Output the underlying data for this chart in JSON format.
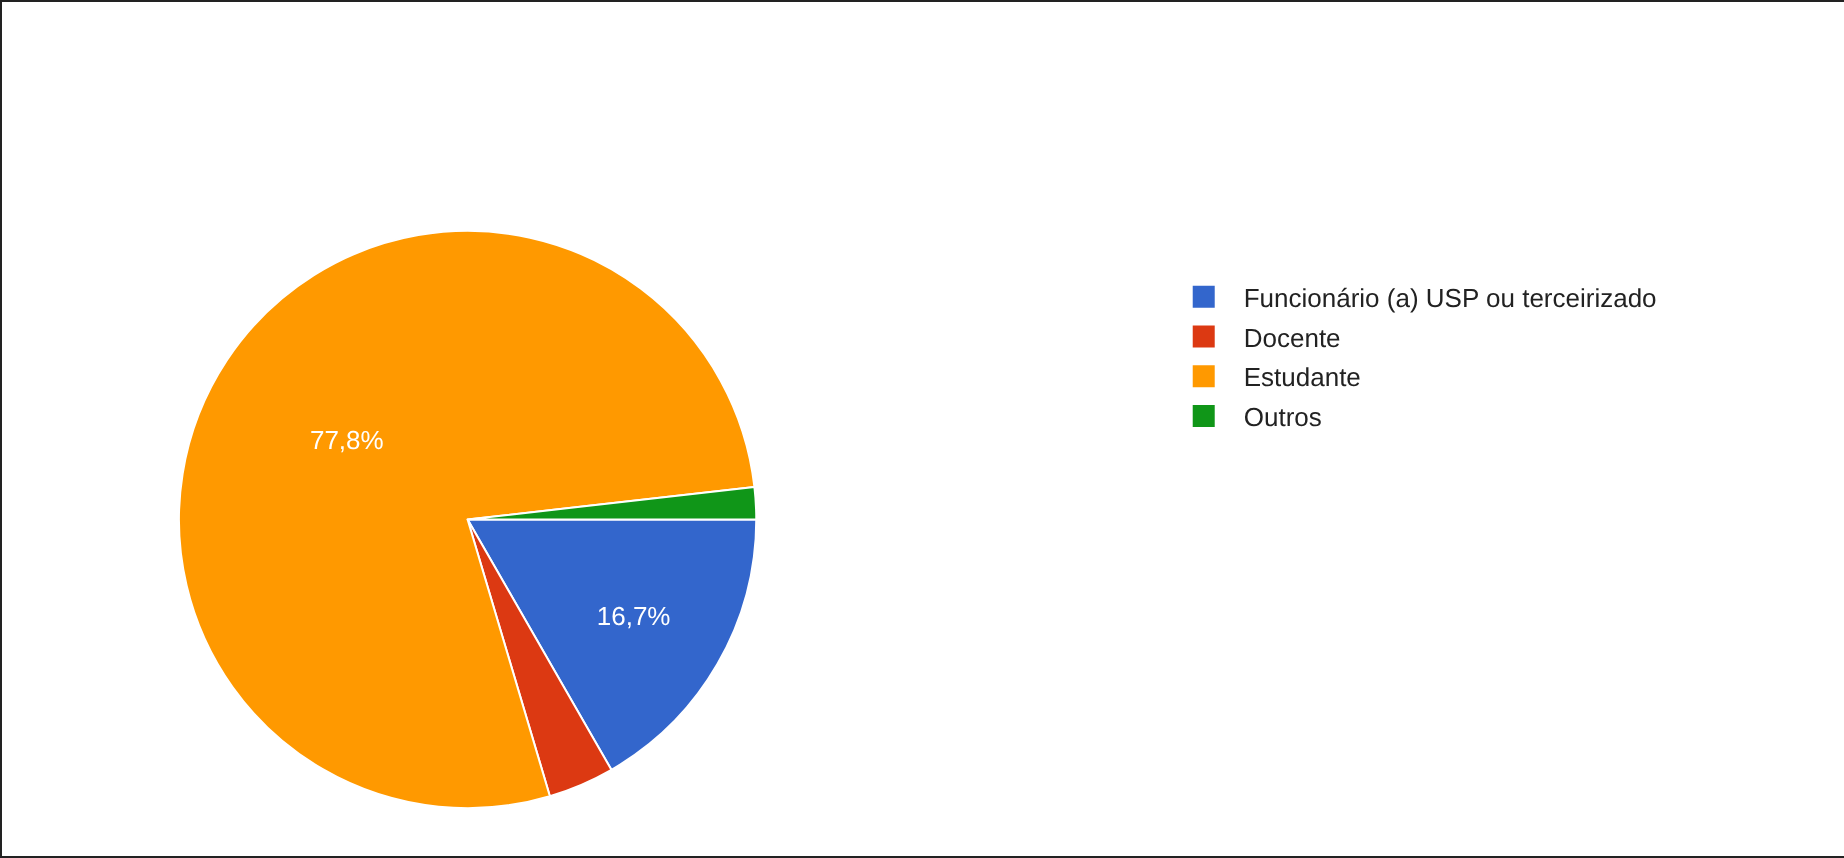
{
  "chart_data": {
    "type": "pie",
    "categories": [
      "Funcionário (a) USP ou terceirizado",
      "Docente",
      "Estudante",
      "Outros"
    ],
    "values": [
      16.7,
      3.7,
      77.8,
      1.8
    ],
    "colors": [
      "#3366cc",
      "#dc3912",
      "#ff9900",
      "#109618"
    ],
    "value_labels": [
      "16,7%",
      null,
      "77,8%",
      null
    ],
    "legend": "right"
  }
}
